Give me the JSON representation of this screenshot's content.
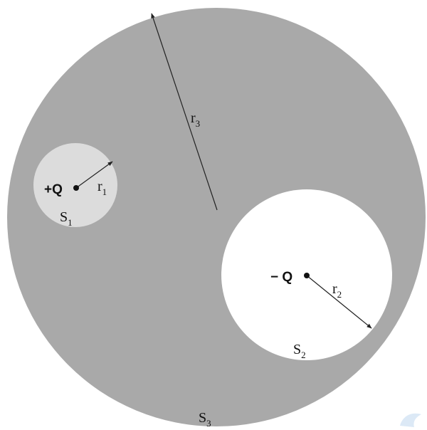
{
  "colors": {
    "outer_sphere": "#a9a9a9",
    "inner_sphere_s1": "#dcdcdc",
    "cavity_s2": "#ffffff",
    "line": "#222222",
    "text": "#111111",
    "watermark": "#dce9f6"
  },
  "labels": {
    "charge_positive": "+Q",
    "charge_negative": "− Q",
    "radius_r1_main": "r",
    "radius_r1_sub": "1",
    "radius_r2_main": "r",
    "radius_r2_sub": "2",
    "radius_r3_main": "r",
    "radius_r3_sub": "3",
    "surface_s1_main": "S",
    "surface_s1_sub": "1",
    "surface_s2_main": "S",
    "surface_s2_sub": "2",
    "surface_s3_main": "S",
    "surface_s3_sub": "3"
  }
}
